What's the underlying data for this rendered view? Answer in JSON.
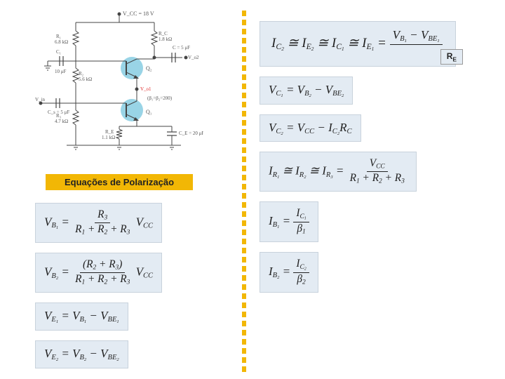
{
  "circuit": {
    "vcc_label": "V_CC = 18 V",
    "r1": {
      "label": "R₁",
      "value": "6.8 kΩ"
    },
    "r2": {
      "label": "R₂",
      "value": "5.6 kΩ"
    },
    "r3": {
      "label": "R₃",
      "value": "4.7 kΩ"
    },
    "rc": {
      "label": "R_C",
      "value": "1.8 kΩ"
    },
    "re": {
      "label": "R_E",
      "value": "1.1 kΩ"
    },
    "c1": {
      "label": "C₁",
      "value": "10 μF"
    },
    "c2": {
      "label": "C",
      "value": "C = 5 μF"
    },
    "cs": {
      "label": "C_s",
      "value": "C_s = 5 μF"
    },
    "ce": {
      "label": "C_E",
      "value": "C_E = 20 μF"
    },
    "q1": "Q₁",
    "q2": "Q₂",
    "vin": "V_in",
    "vo1": "V_o1",
    "vo2": "V_o2",
    "beta": "(β₁=β₂=200)"
  },
  "section_title": "Equações de Polarização",
  "equations": {
    "left": [
      {
        "lhs": "V_B1",
        "frac_num": "R_3",
        "frac_den": "R_1 + R_2 + R_3",
        "mult": "V_CC"
      },
      {
        "lhs": "V_B2",
        "frac_num": "(R_2 + R_3)",
        "frac_den": "R_1 + R_2 + R_3",
        "mult": "V_CC"
      },
      {
        "lhs": "V_E1",
        "rhs": "V_B1 − V_BE1"
      },
      {
        "lhs": "V_E2",
        "rhs": "V_B2 − V_BE2"
      }
    ],
    "right": [
      {
        "text": "I_C2 ≅ I_E2 ≅ I_C1 ≅ I_E1 =",
        "frac_num": "V_B1 − V_BE1",
        "frac_den_annot": "R_E",
        "is_top": true
      },
      {
        "lhs": "V_C1",
        "rhs": "V_B2 − V_BE2"
      },
      {
        "lhs": "V_C2",
        "rhs": "V_CC − I_C2 R_C"
      },
      {
        "lhs": "I_R1 ≅ I_R2 ≅ I_R3",
        "frac_num": "V_CC",
        "frac_den": "R_1 + R_2 + R_3"
      },
      {
        "lhs": "I_B1",
        "frac_num": "I_C1",
        "frac_den": "β_1"
      },
      {
        "lhs": "I_B2",
        "frac_num": "I_C2",
        "frac_den": "β_2"
      }
    ]
  },
  "annot": "R_E",
  "colors": {
    "accent": "#f2b705",
    "eq_bg": "#e3ebf3",
    "eq_border": "#c8d2dc",
    "text": "#222222",
    "transistor_fill": "#7fc9e0",
    "line": "#444"
  }
}
